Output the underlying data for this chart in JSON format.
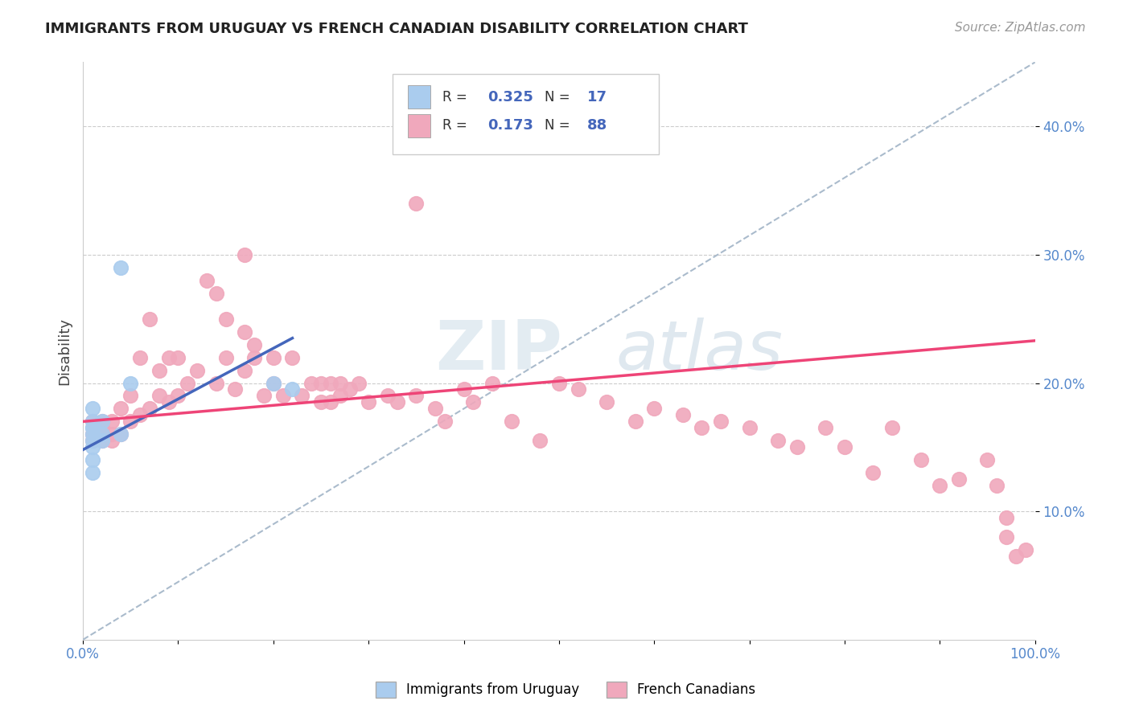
{
  "title": "IMMIGRANTS FROM URUGUAY VS FRENCH CANADIAN DISABILITY CORRELATION CHART",
  "source_text": "Source: ZipAtlas.com",
  "ylabel": "Disability",
  "xlim": [
    0.0,
    1.0
  ],
  "ylim": [
    0.0,
    0.45
  ],
  "yticks": [
    0.1,
    0.2,
    0.3,
    0.4
  ],
  "ytick_labels": [
    "10.0%",
    "20.0%",
    "30.0%",
    "40.0%"
  ],
  "xtick_labels": [
    "0.0%",
    "",
    "",
    "",
    "",
    "",
    "",
    "",
    "",
    "",
    "100.0%"
  ],
  "grid_color": "#cccccc",
  "background_color": "#ffffff",
  "uruguay_color": "#aaccee",
  "french_color": "#f0a8bc",
  "uruguay_line_color": "#4466bb",
  "french_line_color": "#ee4477",
  "uruguay_label": "Immigrants from Uruguay",
  "french_label": "French Canadians",
  "uruguay_R": 0.325,
  "uruguay_N": 17,
  "french_R": 0.173,
  "french_N": 88,
  "watermark": "ZIPAtlas",
  "uruguay_x": [
    0.01,
    0.01,
    0.01,
    0.01,
    0.01,
    0.01,
    0.01,
    0.01,
    0.01,
    0.02,
    0.02,
    0.02,
    0.04,
    0.04,
    0.05,
    0.2,
    0.22
  ],
  "uruguay_y": [
    0.14,
    0.15,
    0.155,
    0.16,
    0.165,
    0.17,
    0.18,
    0.165,
    0.13,
    0.155,
    0.16,
    0.17,
    0.16,
    0.29,
    0.2,
    0.2,
    0.195
  ],
  "french_x": [
    0.01,
    0.01,
    0.01,
    0.02,
    0.02,
    0.02,
    0.02,
    0.03,
    0.03,
    0.03,
    0.04,
    0.04,
    0.05,
    0.05,
    0.06,
    0.06,
    0.07,
    0.07,
    0.08,
    0.08,
    0.09,
    0.09,
    0.1,
    0.1,
    0.11,
    0.12,
    0.13,
    0.14,
    0.14,
    0.15,
    0.15,
    0.16,
    0.17,
    0.17,
    0.17,
    0.18,
    0.18,
    0.19,
    0.2,
    0.2,
    0.21,
    0.22,
    0.23,
    0.24,
    0.25,
    0.25,
    0.26,
    0.26,
    0.27,
    0.27,
    0.28,
    0.29,
    0.3,
    0.32,
    0.33,
    0.35,
    0.37,
    0.38,
    0.4,
    0.41,
    0.43,
    0.45,
    0.48,
    0.5,
    0.52,
    0.55,
    0.58,
    0.6,
    0.63,
    0.65,
    0.67,
    0.7,
    0.73,
    0.75,
    0.78,
    0.8,
    0.83,
    0.85,
    0.88,
    0.9,
    0.92,
    0.95,
    0.96,
    0.97,
    0.97,
    0.98,
    0.99,
    0.35
  ],
  "french_y": [
    0.155,
    0.16,
    0.17,
    0.155,
    0.16,
    0.165,
    0.17,
    0.155,
    0.16,
    0.17,
    0.16,
    0.18,
    0.17,
    0.19,
    0.175,
    0.22,
    0.18,
    0.25,
    0.19,
    0.21,
    0.185,
    0.22,
    0.19,
    0.22,
    0.2,
    0.21,
    0.28,
    0.2,
    0.27,
    0.22,
    0.25,
    0.195,
    0.21,
    0.24,
    0.3,
    0.22,
    0.23,
    0.19,
    0.22,
    0.2,
    0.19,
    0.22,
    0.19,
    0.2,
    0.2,
    0.185,
    0.185,
    0.2,
    0.19,
    0.2,
    0.195,
    0.2,
    0.185,
    0.19,
    0.185,
    0.19,
    0.18,
    0.17,
    0.195,
    0.185,
    0.2,
    0.17,
    0.155,
    0.2,
    0.195,
    0.185,
    0.17,
    0.18,
    0.175,
    0.165,
    0.17,
    0.165,
    0.155,
    0.15,
    0.165,
    0.15,
    0.13,
    0.165,
    0.14,
    0.12,
    0.125,
    0.14,
    0.12,
    0.095,
    0.08,
    0.065,
    0.07,
    0.34
  ],
  "french_line_start_x": 0.0,
  "french_line_start_y": 0.17,
  "french_line_end_x": 1.0,
  "french_line_end_y": 0.233,
  "uruguay_line_start_x": 0.0,
  "uruguay_line_start_y": 0.148,
  "uruguay_line_end_x": 0.22,
  "uruguay_line_end_y": 0.235,
  "dash_line_start_x": 0.0,
  "dash_line_start_y": 0.0,
  "dash_line_end_x": 1.0,
  "dash_line_end_y": 0.45
}
